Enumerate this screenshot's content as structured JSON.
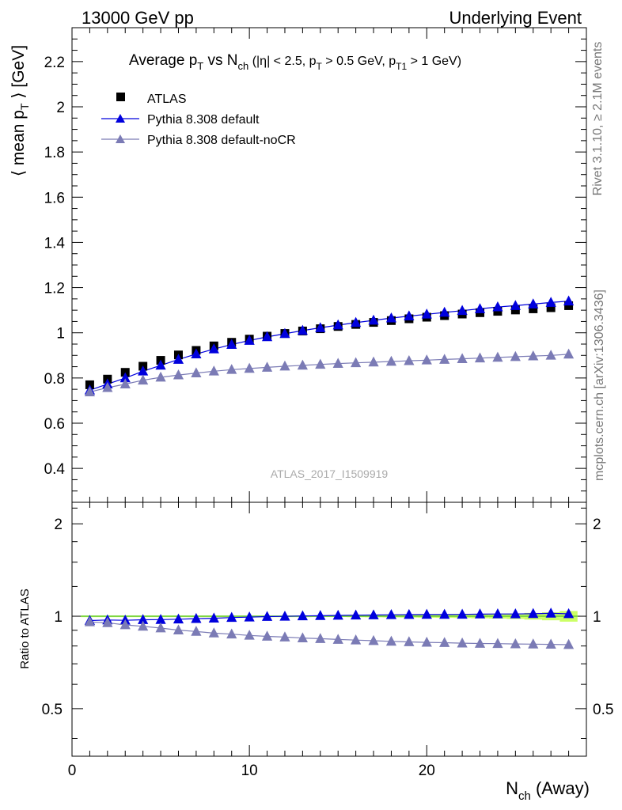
{
  "header": {
    "left": "13000 GeV pp",
    "right": "Underlying Event"
  },
  "side_text": {
    "rivet": "Rivet 3.1.10, ≥ 2.1M events",
    "mcplots": "mcplots.cern.ch [arXiv:1306.3436]"
  },
  "watermark": "ATLAS_2017_I1509919",
  "chart_data": [
    {
      "type": "scatter",
      "title": "Average pT vs Nch (|η| < 2.5, pT > 0.5 GeV, pT1 > 1 GeV)",
      "ylabel": "⟨ mean pT ⟩ [GeV]",
      "xlabel": "Nch (Away)",
      "xlim": [
        0,
        29
      ],
      "ylim": [
        0.25,
        2.35
      ],
      "y_ticks": [
        "0.4",
        "0.6",
        "0.8",
        "1",
        "1.2",
        "1.4",
        "1.6",
        "1.8",
        "2",
        "2.2"
      ],
      "legend_position": "top-left",
      "x": [
        1,
        2,
        3,
        4,
        5,
        6,
        7,
        8,
        9,
        10,
        11,
        12,
        13,
        14,
        15,
        16,
        17,
        18,
        19,
        20,
        21,
        22,
        23,
        24,
        25,
        26,
        27,
        28
      ],
      "series": [
        {
          "name": "ATLAS",
          "color": "#000000",
          "marker": "square",
          "values": [
            0.77,
            0.795,
            0.825,
            0.852,
            0.878,
            0.902,
            0.922,
            0.942,
            0.958,
            0.972,
            0.985,
            0.997,
            1.008,
            1.018,
            1.028,
            1.037,
            1.046,
            1.054,
            1.062,
            1.069,
            1.076,
            1.083,
            1.089,
            1.095,
            1.101,
            1.106,
            1.111,
            1.12
          ]
        },
        {
          "name": "Pythia 8.308 default",
          "color": "#0000dd",
          "marker": "triangle",
          "values": [
            0.746,
            0.773,
            0.8,
            0.83,
            0.856,
            0.882,
            0.906,
            0.928,
            0.948,
            0.966,
            0.982,
            0.996,
            1.01,
            1.022,
            1.034,
            1.045,
            1.055,
            1.065,
            1.074,
            1.082,
            1.09,
            1.098,
            1.106,
            1.114,
            1.12,
            1.127,
            1.134,
            1.14
          ]
        },
        {
          "name": "Pythia 8.308 default-noCR",
          "color": "#7b7bb5",
          "marker": "triangle",
          "values": [
            0.738,
            0.757,
            0.773,
            0.79,
            0.803,
            0.813,
            0.822,
            0.83,
            0.837,
            0.842,
            0.847,
            0.852,
            0.856,
            0.86,
            0.864,
            0.867,
            0.87,
            0.873,
            0.876,
            0.879,
            0.882,
            0.885,
            0.888,
            0.891,
            0.894,
            0.897,
            0.9,
            0.905
          ]
        }
      ]
    },
    {
      "type": "scatter",
      "ylabel": "Ratio to ATLAS",
      "xlabel": "Nch (Away)",
      "xlim": [
        0,
        29
      ],
      "ylim": [
        0.35,
        2.35
      ],
      "y_scale": "log",
      "y_ticks": [
        "0.5",
        "1",
        "2"
      ],
      "x_ticks": [
        "0",
        "10",
        "20"
      ],
      "band_color": "#ccff66",
      "reference_line_color": "#66cc33",
      "x": [
        1,
        2,
        3,
        4,
        5,
        6,
        7,
        8,
        9,
        10,
        11,
        12,
        13,
        14,
        15,
        16,
        17,
        18,
        19,
        20,
        21,
        22,
        23,
        24,
        25,
        26,
        27,
        28
      ],
      "band": [
        0.005,
        0.005,
        0.005,
        0.005,
        0.005,
        0.005,
        0.005,
        0.005,
        0.005,
        0.005,
        0.005,
        0.005,
        0.005,
        0.006,
        0.006,
        0.007,
        0.008,
        0.009,
        0.01,
        0.011,
        0.012,
        0.013,
        0.015,
        0.017,
        0.02,
        0.025,
        0.03,
        0.04
      ],
      "series": [
        {
          "name": "Pythia 8.308 default",
          "color": "#0000dd",
          "values": [
            0.968,
            0.972,
            0.97,
            0.974,
            0.975,
            0.978,
            0.982,
            0.985,
            0.99,
            0.993,
            0.997,
            0.999,
            1.002,
            1.004,
            1.006,
            1.008,
            1.009,
            1.011,
            1.012,
            1.013,
            1.013,
            1.014,
            1.016,
            1.017,
            1.017,
            1.019,
            1.022,
            1.018
          ]
        },
        {
          "name": "Pythia 8.308 default-noCR",
          "color": "#7b7bb5",
          "values": [
            0.958,
            0.952,
            0.937,
            0.927,
            0.915,
            0.901,
            0.892,
            0.881,
            0.874,
            0.866,
            0.86,
            0.855,
            0.849,
            0.845,
            0.84,
            0.836,
            0.832,
            0.828,
            0.825,
            0.822,
            0.82,
            0.817,
            0.815,
            0.814,
            0.812,
            0.811,
            0.81,
            0.808
          ]
        }
      ]
    }
  ]
}
